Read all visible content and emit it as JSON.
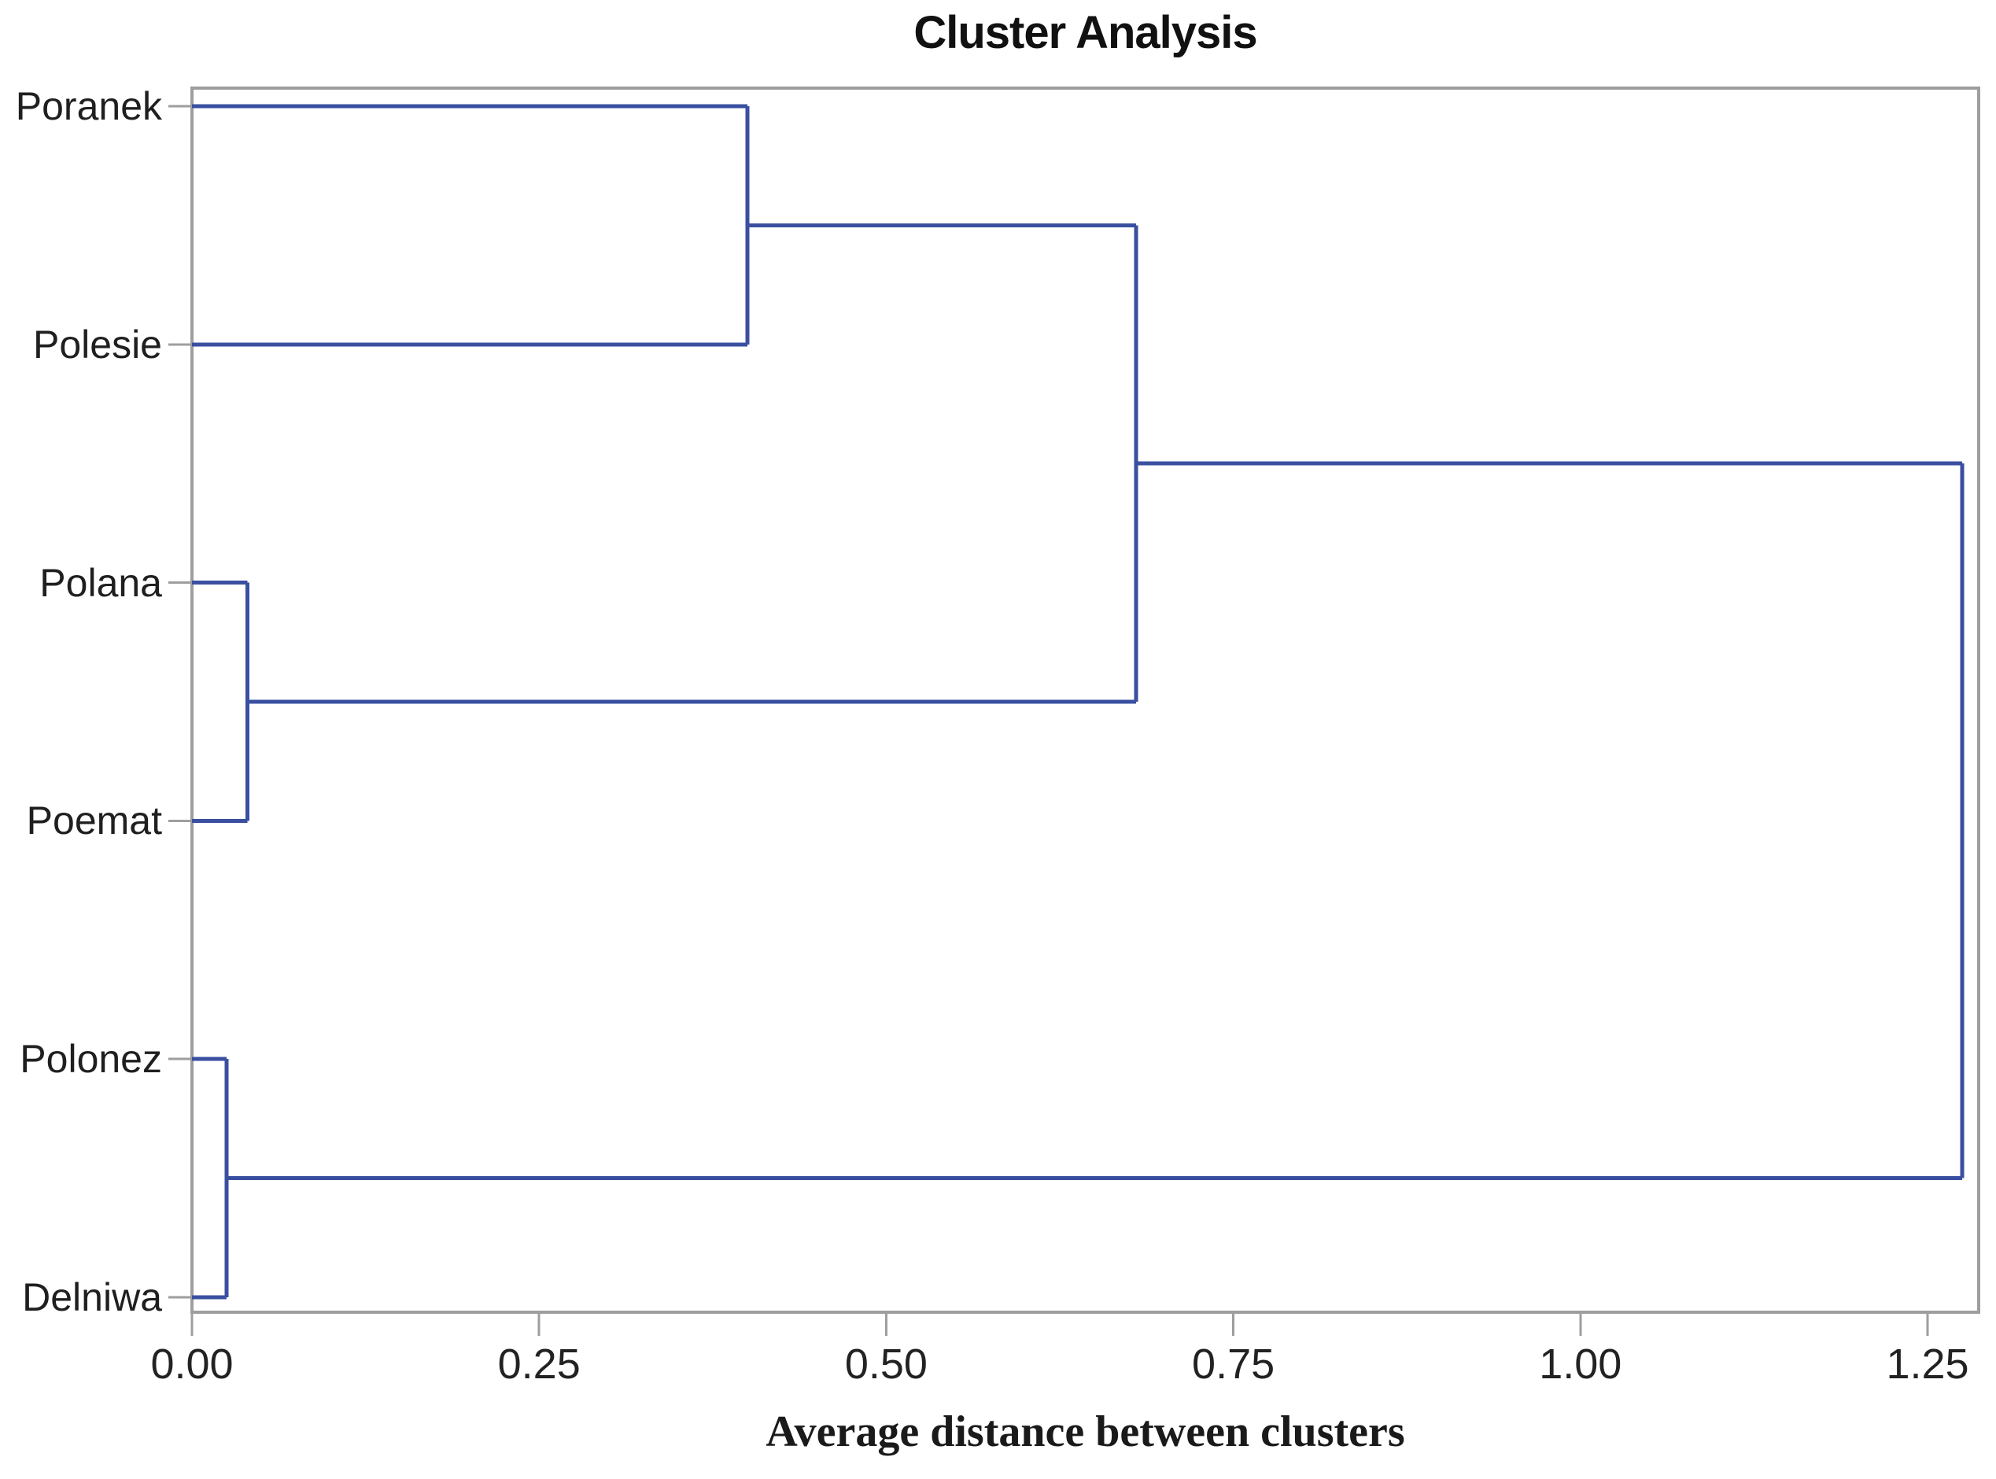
{
  "chart_data": {
    "type": "dendrogram",
    "orientation": "horizontal",
    "title": "Cluster Analysis",
    "xlabel": "Average distance between clusters",
    "leaves": [
      "Poranek",
      "Polesie",
      "Polana",
      "Poemat",
      "Polonez",
      "Delniwa"
    ],
    "merges": [
      {
        "id": "m1",
        "children": [
          "Polonez",
          "Delniwa"
        ],
        "distance": 0.025
      },
      {
        "id": "m2",
        "children": [
          "Polana",
          "Poemat"
        ],
        "distance": 0.04
      },
      {
        "id": "m3",
        "children": [
          "Poranek",
          "Polesie"
        ],
        "distance": 0.4
      },
      {
        "id": "m4",
        "children": [
          "m3",
          "m2"
        ],
        "distance": 0.68
      },
      {
        "id": "m5",
        "children": [
          "m4",
          "m1"
        ],
        "distance": 1.275
      }
    ],
    "x_ticks": [
      {
        "value": 0.0,
        "label": "0.00"
      },
      {
        "value": 0.25,
        "label": "0.25"
      },
      {
        "value": 0.5,
        "label": "0.50"
      },
      {
        "value": 0.75,
        "label": "0.75"
      },
      {
        "value": 1.0,
        "label": "1.00"
      },
      {
        "value": 1.25,
        "label": "1.25"
      }
    ],
    "xlim": [
      0,
      1.287
    ],
    "grid": false,
    "legend": "none",
    "colors": {
      "line": "#3A4FA0",
      "axis": "#9E9E9E",
      "text": "#1F1F1F"
    }
  }
}
